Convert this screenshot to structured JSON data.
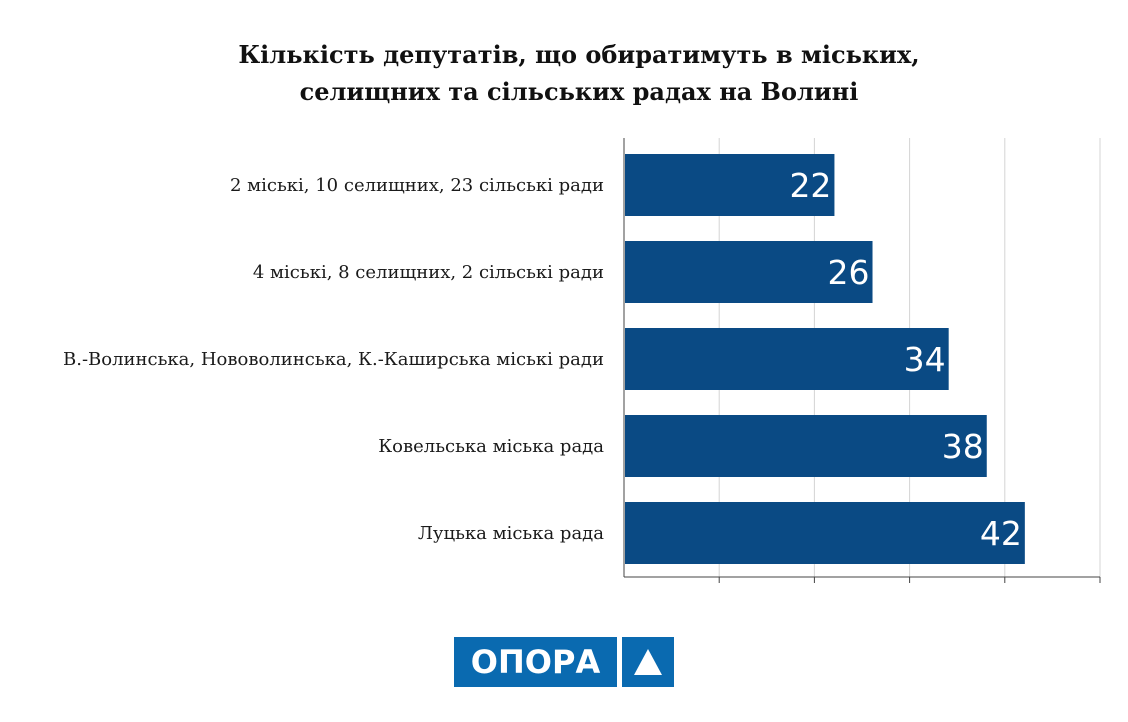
{
  "chart_data": {
    "type": "bar",
    "orientation": "horizontal",
    "title_lines": [
      "Кількість депутатів, що обиратимуть в міських,",
      "селищних та сільських радах на Волині"
    ],
    "categories": [
      "2 міські, 10 селищних, 23 сільські ради",
      "4 міські, 8 селищних, 2 сільські ради",
      "В.-Волинська, Нововолинська, К.-Каширська міські ради",
      "Ковельська міська рада",
      "Луцька міська рада"
    ],
    "values": [
      22,
      26,
      34,
      38,
      42
    ],
    "xlim": [
      0,
      50
    ],
    "grid": true,
    "bar_color": "#0a4a84"
  },
  "logo": {
    "text": "ОПОРА",
    "mark": "triangle-icon",
    "color": "#0a6ab0"
  }
}
